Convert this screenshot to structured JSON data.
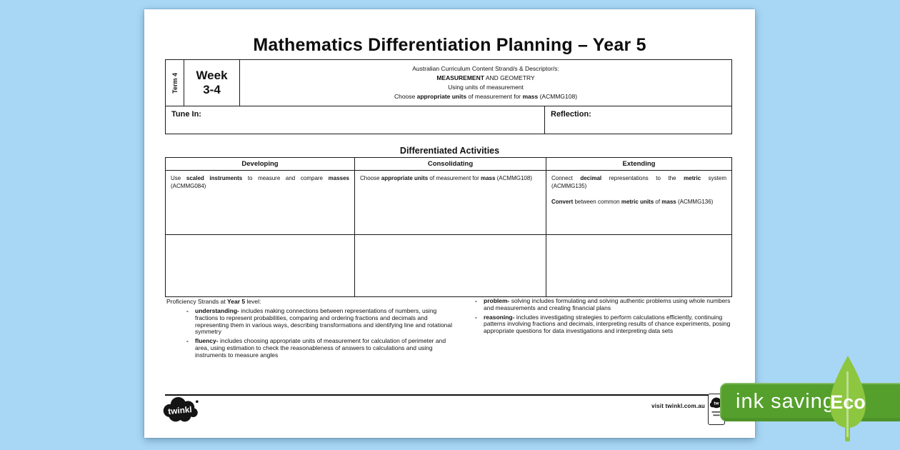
{
  "colors": {
    "background_blue": "#a8d7f5",
    "banner_green": "#55a02c",
    "leaf_green": "#8dc63f",
    "page_white": "#ffffff"
  },
  "page": {
    "title": "Mathematics Differentiation Planning – Year 5"
  },
  "header": {
    "term": "Term 4",
    "week_line1": "Week",
    "week_line2": "3-4",
    "curriculum_line1": "Australian Curriculum Content Strand/s & Descriptor/s:",
    "curriculum_line2": [
      {
        "t": "MEASUREMENT",
        "b": true
      },
      {
        "t": " AND GEOMETRY",
        "b": false
      }
    ],
    "curriculum_line3": "Using units of measurement",
    "curriculum_line4": [
      {
        "t": "Choose ",
        "b": false
      },
      {
        "t": "appropriate units",
        "b": true
      },
      {
        "t": " of measurement for ",
        "b": false
      },
      {
        "t": "mass",
        "b": true
      },
      {
        "t": " (ACMMG108)",
        "b": false
      }
    ]
  },
  "sections": {
    "tune_in_label": "Tune In:",
    "reflection_label": "Reflection:"
  },
  "activities": {
    "title": "Differentiated Activities",
    "columns": [
      "Developing",
      "Consolidating",
      "Extending"
    ],
    "developing": [
      {
        "t": "Use ",
        "b": false
      },
      {
        "t": "scaled instruments",
        "b": true
      },
      {
        "t": " to measure and compare ",
        "b": false
      },
      {
        "t": "masses",
        "b": true
      },
      {
        "t": " (ACMMG084)",
        "b": false
      }
    ],
    "consolidating": [
      {
        "t": "Choose ",
        "b": false
      },
      {
        "t": "appropriate units",
        "b": true
      },
      {
        "t": " of measurement for ",
        "b": false
      },
      {
        "t": "mass",
        "b": true
      },
      {
        "t": " (ACMMG108)",
        "b": false
      }
    ],
    "extending_p1": [
      {
        "t": "Connect ",
        "b": false
      },
      {
        "t": "decimal",
        "b": true
      },
      {
        "t": " representations to the ",
        "b": false
      },
      {
        "t": "metric",
        "b": true
      },
      {
        "t": " system (ACMMG135)",
        "b": false
      }
    ],
    "extending_p2": [
      {
        "t": "Convert",
        "b": true
      },
      {
        "t": " between common ",
        "b": false
      },
      {
        "t": "metric units",
        "b": true
      },
      {
        "t": " of ",
        "b": false
      },
      {
        "t": "mass",
        "b": true
      },
      {
        "t": " (ACMMG136)",
        "b": false
      }
    ]
  },
  "proficiency": {
    "bullet_char": "-",
    "intro": [
      {
        "t": "Proficiency Strands at ",
        "b": false
      },
      {
        "t": "Year 5",
        "b": true
      },
      {
        "t": " level:",
        "b": false
      }
    ],
    "bullets_left": [
      [
        {
          "t": "understanding-",
          "b": true
        },
        {
          "t": " includes making connections between representations of numbers, using fractions to represent probabilities, comparing and ordering fractions and decimals and representing them in various ways, describing transformations and identifying line and rotational symmetry",
          "b": false
        }
      ],
      [
        {
          "t": "fluency-",
          "b": true
        },
        {
          "t": " includes choosing appropriate units of measurement for calculation of perimeter and area, using estimation to check the reasonableness of answers to calculations and using instruments to measure angles",
          "b": false
        }
      ]
    ],
    "bullets_right": [
      [
        {
          "t": "problem-",
          "b": true
        },
        {
          "t": " solving includes formulating and solving authentic problems using whole numbers and measurements and creating financial plans",
          "b": false
        }
      ],
      [
        {
          "t": "reasoning-",
          "b": true
        },
        {
          "t": " includes investigating strategies to perform calculations efficiently, continuing patterns involving fractions and decimals, interpreting results of chance experiments, posing appropriate questions for data investigations and interpreting data sets",
          "b": false
        }
      ]
    ]
  },
  "footer": {
    "logo_text": "twinkl",
    "visit_text": "visit twinkl.com.au"
  },
  "eco_badge": {
    "ink_saving": "ink saving",
    "eco": "Eco"
  }
}
